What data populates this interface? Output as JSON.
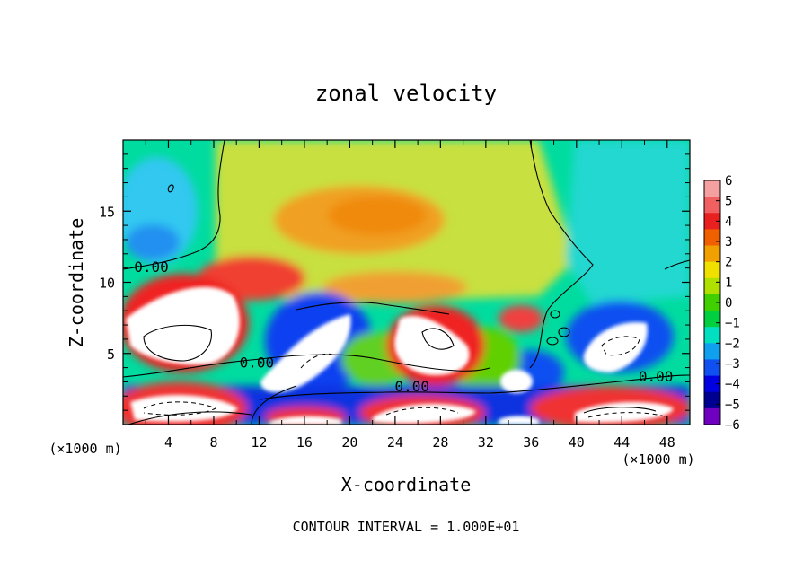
{
  "chart_data": {
    "type": "heatmap",
    "title": "zonal velocity",
    "xlabel": "X-coordinate",
    "ylabel": "Z-coordinate",
    "x_unit": "(×1000 m)",
    "y_unit": "(×1000 m)",
    "footer": "CONTOUR INTERVAL = 1.000E+01",
    "xlim": [
      0,
      50
    ],
    "ylim": [
      0,
      20
    ],
    "x_ticks": [
      4,
      8,
      12,
      16,
      20,
      24,
      28,
      32,
      36,
      40,
      44,
      48
    ],
    "y_ticks": [
      5,
      10,
      15
    ],
    "colorbar": {
      "ticks": [
        6,
        5,
        4,
        3,
        2,
        1,
        0,
        -1,
        -2,
        -3,
        -4,
        -5,
        -6
      ],
      "colors": [
        "#f4a0a0",
        "#f06060",
        "#e82020",
        "#f06000",
        "#f0a000",
        "#f0e000",
        "#b0e000",
        "#40d000",
        "#00d040",
        "#00e0c0",
        "#10a0f0",
        "#1050f0",
        "#0000e0",
        "#000090",
        "#7000c0"
      ]
    },
    "contour_labels": [
      {
        "x": 2.5,
        "z": 11.1,
        "text": "0.00"
      },
      {
        "x": 11.8,
        "z": 4.4,
        "text": "0.00"
      },
      {
        "x": 25.5,
        "z": 2.7,
        "text": "0.00"
      },
      {
        "x": 47.0,
        "z": 3.4,
        "text": "0.00"
      }
    ]
  }
}
